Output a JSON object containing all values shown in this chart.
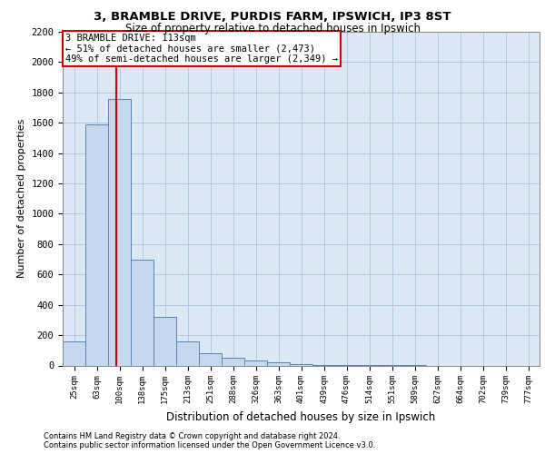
{
  "title_line1": "3, BRAMBLE DRIVE, PURDIS FARM, IPSWICH, IP3 8ST",
  "title_line2": "Size of property relative to detached houses in Ipswich",
  "xlabel": "Distribution of detached houses by size in Ipswich",
  "ylabel": "Number of detached properties",
  "categories": [
    "25sqm",
    "63sqm",
    "100sqm",
    "138sqm",
    "175sqm",
    "213sqm",
    "251sqm",
    "288sqm",
    "326sqm",
    "363sqm",
    "401sqm",
    "439sqm",
    "476sqm",
    "514sqm",
    "551sqm",
    "589sqm",
    "627sqm",
    "664sqm",
    "702sqm",
    "739sqm",
    "777sqm"
  ],
  "values": [
    160,
    1590,
    1760,
    700,
    320,
    160,
    80,
    50,
    30,
    20,
    10,
    5,
    3,
    2,
    1,
    1,
    0,
    0,
    0,
    0,
    0
  ],
  "bar_color": "#c5d8ee",
  "bar_edge_color": "#5585b5",
  "background_color": "#ffffff",
  "plot_bg_color": "#dce9f5",
  "grid_color": "#b0c8e0",
  "red_line_x": 1.85,
  "red_line_color": "#cc0000",
  "annotation_text": "3 BRAMBLE DRIVE: 113sqm\n← 51% of detached houses are smaller (2,473)\n49% of semi-detached houses are larger (2,349) →",
  "annotation_box_color": "#ffffff",
  "annotation_box_edge": "#cc0000",
  "ylim": [
    0,
    2200
  ],
  "yticks": [
    0,
    200,
    400,
    600,
    800,
    1000,
    1200,
    1400,
    1600,
    1800,
    2000,
    2200
  ],
  "footnote1": "Contains HM Land Registry data © Crown copyright and database right 2024.",
  "footnote2": "Contains public sector information licensed under the Open Government Licence v3.0."
}
